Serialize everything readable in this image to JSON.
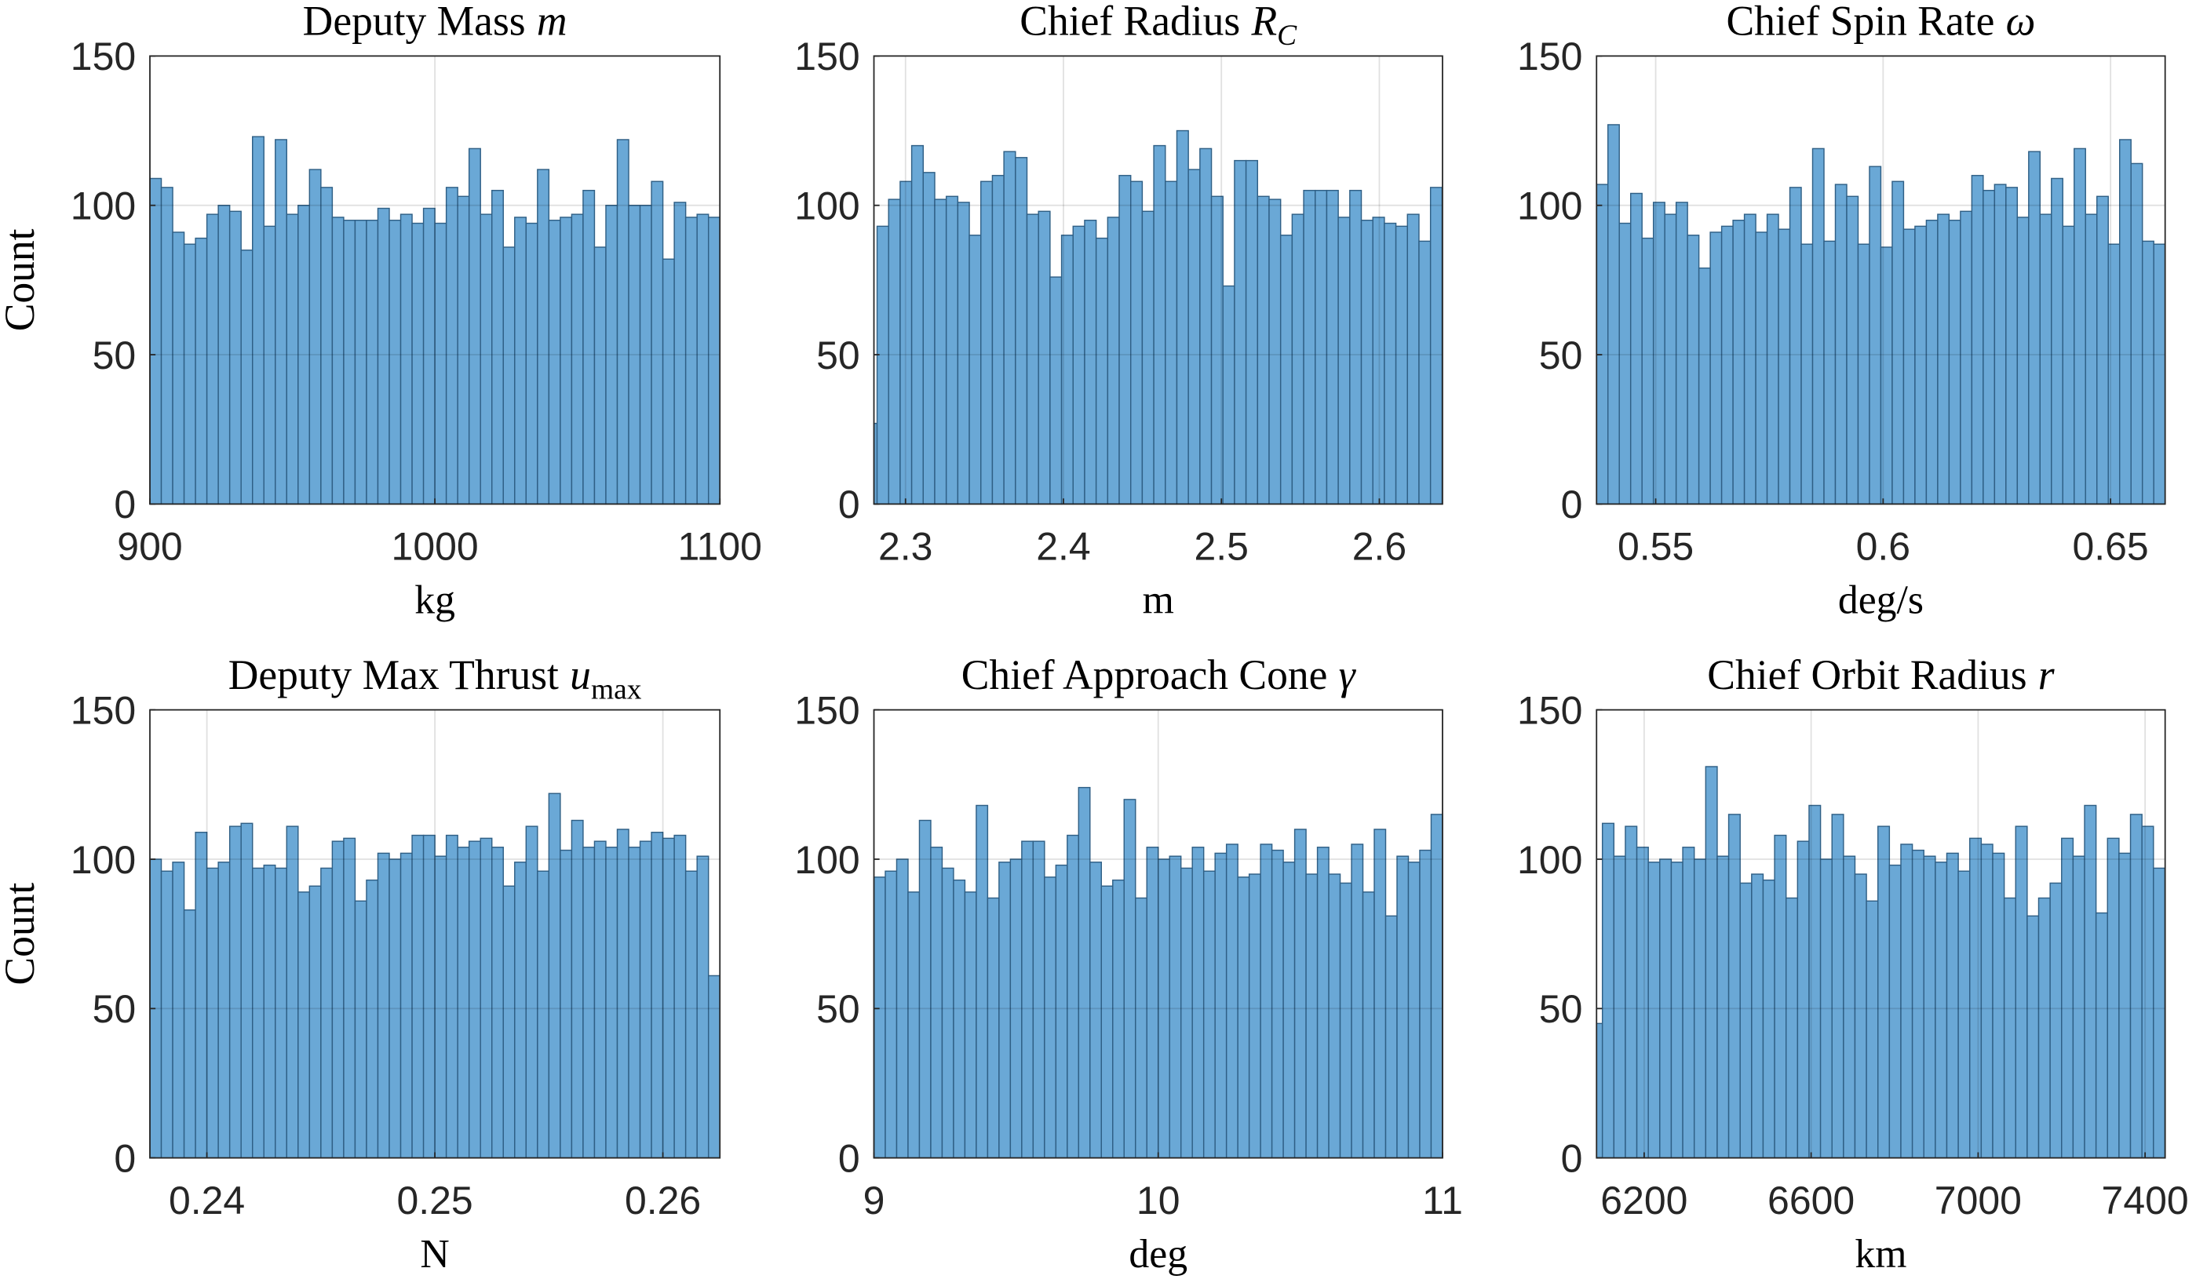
{
  "chart_data": [
    {
      "type": "histogram",
      "title": {
        "text": "Deputy Mass",
        "symbol": "m"
      },
      "xlabel": "kg",
      "ylabel": "Count",
      "bins": [
        900,
        904,
        908,
        912,
        916,
        920,
        924,
        928,
        932,
        936,
        940,
        944,
        948,
        952,
        956,
        960,
        964,
        968,
        972,
        976,
        980,
        984,
        988,
        992,
        996,
        1000,
        1004,
        1008,
        1012,
        1016,
        1020,
        1024,
        1028,
        1032,
        1036,
        1040,
        1044,
        1048,
        1052,
        1056,
        1060,
        1064,
        1068,
        1072,
        1076,
        1080,
        1084,
        1088,
        1092,
        1096,
        1100
      ],
      "counts": [
        109,
        106,
        91,
        87,
        89,
        97,
        100,
        98,
        85,
        123,
        93,
        122,
        97,
        100,
        112,
        106,
        96,
        95,
        95,
        95,
        99,
        95,
        97,
        94,
        99,
        94,
        106,
        103,
        119,
        97,
        105,
        86,
        96,
        94,
        112,
        95,
        96,
        97,
        105,
        86,
        100,
        122,
        100,
        100,
        108,
        82,
        101,
        96,
        97,
        96
      ],
      "xlim": [
        900,
        1100
      ],
      "xticks": [
        900,
        1000,
        1100
      ],
      "ylim": [
        0,
        150
      ],
      "yticks": [
        0,
        50,
        100,
        150
      ],
      "grid": true,
      "color": "#6aa8d6"
    },
    {
      "type": "histogram",
      "title": {
        "text": "Chief Radius",
        "symbol": "R",
        "subscript": "C"
      },
      "xlabel": "m",
      "bins": [
        2.28,
        2.282,
        2.2893,
        2.2966,
        2.3039,
        2.3112,
        2.3185,
        2.3258,
        2.3331,
        2.3404,
        2.3477,
        2.355,
        2.3623,
        2.3696,
        2.3769,
        2.3842,
        2.3915,
        2.3988,
        2.4061,
        2.4134,
        2.4207,
        2.428,
        2.4353,
        2.4426,
        2.4499,
        2.4572,
        2.4645,
        2.4718,
        2.4791,
        2.4864,
        2.4937,
        2.501,
        2.5083,
        2.5156,
        2.5229,
        2.5302,
        2.5375,
        2.5448,
        2.5521,
        2.5594,
        2.5667,
        2.574,
        2.5813,
        2.5886,
        2.5959,
        2.6032,
        2.6105,
        2.6178,
        2.6251,
        2.6324,
        2.6397
      ],
      "counts": [
        27,
        93,
        102,
        108,
        120,
        111,
        102,
        103,
        101,
        90,
        108,
        110,
        118,
        116,
        97,
        98,
        76,
        90,
        93,
        95,
        89,
        96,
        110,
        108,
        98,
        120,
        108,
        125,
        112,
        119,
        103,
        73,
        115,
        115,
        103,
        102,
        90,
        97,
        105,
        105,
        105,
        96,
        105,
        95,
        96,
        94,
        93,
        97,
        88,
        106
      ],
      "xlim": [
        2.28,
        2.64
      ],
      "xticks": [
        2.3,
        2.4,
        2.5,
        2.6
      ],
      "ylim": [
        0,
        150
      ],
      "yticks": [
        0,
        50,
        100,
        150
      ],
      "grid": true,
      "color": "#6aa8d6"
    },
    {
      "type": "histogram",
      "title": {
        "text": "Chief Spin Rate",
        "symbol": "ω"
      },
      "xlabel": "deg/s",
      "bins": [
        0.537,
        0.5395,
        0.542,
        0.5445,
        0.547,
        0.5495,
        0.552,
        0.5545,
        0.557,
        0.5595,
        0.562,
        0.5645,
        0.567,
        0.5695,
        0.572,
        0.5745,
        0.577,
        0.5795,
        0.582,
        0.5845,
        0.587,
        0.5895,
        0.592,
        0.5945,
        0.597,
        0.5995,
        0.602,
        0.6045,
        0.607,
        0.6095,
        0.612,
        0.6145,
        0.617,
        0.6195,
        0.622,
        0.6245,
        0.627,
        0.6295,
        0.632,
        0.6345,
        0.637,
        0.6395,
        0.642,
        0.6445,
        0.647,
        0.6495,
        0.652,
        0.6545,
        0.657,
        0.6595,
        0.662
      ],
      "counts": [
        107,
        127,
        94,
        104,
        89,
        101,
        97,
        101,
        90,
        79,
        91,
        93,
        95,
        97,
        91,
        97,
        92,
        106,
        87,
        119,
        88,
        107,
        103,
        87,
        113,
        86,
        108,
        92,
        93,
        95,
        97,
        95,
        98,
        110,
        105,
        107,
        106,
        96,
        118,
        97,
        109,
        93,
        119,
        97,
        103,
        87,
        122,
        114,
        88,
        87
      ],
      "xlim": [
        0.537,
        0.662
      ],
      "xticks": [
        0.55,
        0.6,
        0.65
      ],
      "ylim": [
        0,
        150
      ],
      "yticks": [
        0,
        50,
        100,
        150
      ],
      "grid": true,
      "color": "#6aa8d6"
    },
    {
      "type": "histogram",
      "title": {
        "text": "Deputy Max Thrust",
        "symbol": "u",
        "subscript": "max"
      },
      "xlabel": "N",
      "ylabel": "Count",
      "bins": [
        0.2375,
        0.238,
        0.2385,
        0.239,
        0.2395,
        0.24,
        0.2405,
        0.241,
        0.2415,
        0.242,
        0.2425,
        0.243,
        0.2435,
        0.244,
        0.2445,
        0.245,
        0.2455,
        0.246,
        0.2465,
        0.247,
        0.2475,
        0.248,
        0.2485,
        0.249,
        0.2495,
        0.25,
        0.2505,
        0.251,
        0.2515,
        0.252,
        0.2525,
        0.253,
        0.2535,
        0.254,
        0.2545,
        0.255,
        0.2555,
        0.256,
        0.2565,
        0.257,
        0.2575,
        0.258,
        0.2585,
        0.259,
        0.2595,
        0.26,
        0.2605,
        0.261,
        0.2615,
        0.262,
        0.2625
      ],
      "counts": [
        100,
        96,
        99,
        83,
        109,
        97,
        99,
        111,
        112,
        97,
        98,
        97,
        111,
        89,
        91,
        97,
        106,
        107,
        86,
        93,
        102,
        100,
        102,
        108,
        108,
        101,
        108,
        104,
        106,
        107,
        104,
        91,
        99,
        111,
        96,
        122,
        103,
        113,
        104,
        106,
        104,
        110,
        104,
        106,
        109,
        107,
        108,
        96,
        101,
        61
      ],
      "xlim": [
        0.2375,
        0.2625
      ],
      "xticks": [
        0.24,
        0.25,
        0.26
      ],
      "ylim": [
        0,
        150
      ],
      "yticks": [
        0,
        50,
        100,
        150
      ],
      "grid": true,
      "color": "#6aa8d6"
    },
    {
      "type": "histogram",
      "title": {
        "text": "Chief Approach Cone",
        "symbol": "γ"
      },
      "xlabel": "deg",
      "bins": [
        9,
        9.04,
        9.08,
        9.12,
        9.16,
        9.2,
        9.24,
        9.28,
        9.32,
        9.36,
        9.4,
        9.44,
        9.48,
        9.52,
        9.56,
        9.6,
        9.64,
        9.68,
        9.72,
        9.76,
        9.8,
        9.84,
        9.88,
        9.92,
        9.96,
        10,
        10.04,
        10.08,
        10.12,
        10.16,
        10.2,
        10.24,
        10.28,
        10.32,
        10.36,
        10.4,
        10.44,
        10.48,
        10.52,
        10.56,
        10.6,
        10.64,
        10.68,
        10.72,
        10.76,
        10.8,
        10.84,
        10.88,
        10.92,
        10.96,
        11
      ],
      "counts": [
        94,
        96,
        100,
        89,
        113,
        104,
        97,
        93,
        89,
        118,
        87,
        99,
        100,
        106,
        106,
        94,
        98,
        108,
        124,
        99,
        91,
        93,
        120,
        87,
        104,
        100,
        101,
        97,
        104,
        96,
        102,
        105,
        94,
        95,
        105,
        103,
        99,
        110,
        95,
        104,
        95,
        92,
        105,
        89,
        110,
        81,
        101,
        99,
        103,
        115
      ],
      "xlim": [
        9,
        11
      ],
      "xticks": [
        9,
        10,
        11
      ],
      "ylim": [
        0,
        150
      ],
      "yticks": [
        0,
        50,
        100,
        150
      ],
      "grid": true,
      "color": "#6aa8d6"
    },
    {
      "type": "histogram",
      "title": {
        "text": "Chief Orbit Radius",
        "symbol": "r"
      },
      "xlabel": "km",
      "bins": [
        6086,
        6100,
        6127.5,
        6155,
        6182.5,
        6210,
        6237.5,
        6265,
        6292.5,
        6320,
        6347.5,
        6375,
        6402.5,
        6430,
        6457.5,
        6485,
        6512.5,
        6540,
        6567.5,
        6595,
        6622.5,
        6650,
        6677.5,
        6705,
        6732.5,
        6760,
        6787.5,
        6815,
        6842.5,
        6870,
        6897.5,
        6925,
        6952.5,
        6980,
        7007.5,
        7035,
        7062.5,
        7090,
        7117.5,
        7145,
        7172.5,
        7200,
        7227.5,
        7255,
        7282.5,
        7310,
        7337.5,
        7365,
        7392.5,
        7420,
        7447.5
      ],
      "counts": [
        45,
        112,
        101,
        111,
        104,
        99,
        100,
        99,
        104,
        100,
        131,
        101,
        115,
        92,
        95,
        93,
        108,
        87,
        106,
        118,
        100,
        115,
        101,
        95,
        86,
        111,
        98,
        105,
        103,
        101,
        99,
        102,
        96,
        107,
        105,
        102,
        87,
        111,
        81,
        87,
        92,
        107,
        101,
        118,
        82,
        107,
        102,
        115,
        111,
        97
      ],
      "xlim": [
        6086,
        7448
      ],
      "xticks": [
        6200,
        6600,
        7000,
        7400
      ],
      "ylim": [
        0,
        150
      ],
      "yticks": [
        0,
        50,
        100,
        150
      ],
      "grid": true,
      "color": "#6aa8d6"
    }
  ]
}
